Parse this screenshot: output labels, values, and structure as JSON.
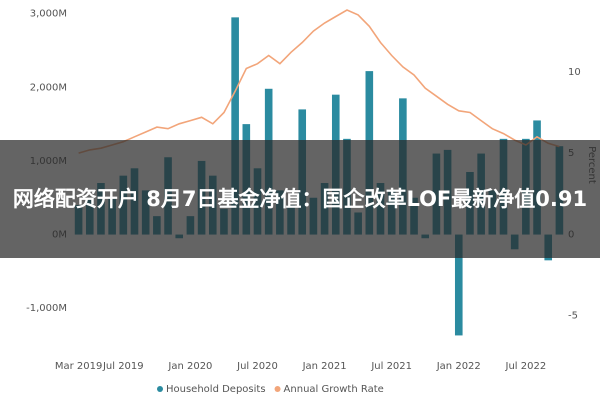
{
  "chart_data": {
    "type": "bar-line",
    "categories": [
      "Mar 2019",
      null,
      null,
      null,
      "Jul 2019",
      null,
      null,
      null,
      null,
      null,
      "Jan 2020",
      null,
      null,
      null,
      null,
      null,
      "Jul 2020",
      null,
      null,
      null,
      null,
      null,
      "Jan 2021",
      null,
      null,
      null,
      null,
      null,
      "Jul 2021",
      null,
      null,
      null,
      null,
      null,
      "Jan 2022",
      null,
      null,
      null,
      null,
      null,
      "Jul 2022",
      null,
      null,
      null
    ],
    "series": [
      {
        "name": "Household Deposits",
        "color": "#2b8ba0",
        "values": [
          400,
          500,
          700,
          500,
          800,
          900,
          600,
          250,
          1050,
          -50,
          250,
          1000,
          800,
          350,
          2950,
          1500,
          900,
          1980,
          600,
          400,
          1700,
          500,
          700,
          1900,
          1300,
          300,
          2220,
          700,
          600,
          1850,
          500,
          -50,
          1100,
          1150,
          -1370,
          850,
          1100,
          600,
          1300,
          -200,
          1300,
          1550,
          -350,
          1200
        ]
      },
      {
        "name": "Annual Growth Rate",
        "color": "#f2a57a",
        "axis": "y2",
        "values": [
          5.0,
          5.2,
          5.3,
          5.5,
          5.7,
          6.0,
          6.3,
          6.6,
          6.5,
          6.8,
          7.0,
          7.2,
          6.8,
          7.5,
          8.8,
          10.2,
          10.5,
          11.0,
          10.5,
          11.2,
          11.8,
          12.5,
          13.0,
          13.4,
          13.8,
          13.5,
          12.8,
          11.8,
          11.0,
          10.3,
          9.8,
          9.0,
          8.5,
          8.0,
          7.6,
          7.5,
          7.0,
          6.5,
          6.2,
          5.8,
          5.5,
          6.0,
          5.6,
          5.4
        ]
      }
    ],
    "ylim": [
      -1500,
      3050
    ],
    "yticks": [
      {
        "value": -1000,
        "label": "-1,000M"
      },
      {
        "value": 0,
        "label": "0M"
      },
      {
        "value": 1000,
        "label": "1,000M"
      },
      {
        "value": 2000,
        "label": "2,000M"
      },
      {
        "value": 3000,
        "label": "3,000M"
      }
    ],
    "y2lim": [
      -6.8,
      13.8
    ],
    "y2ticks": [
      -5,
      0,
      5,
      10
    ],
    "y2label": "Percent",
    "legend": "bottom"
  },
  "banner": {
    "headline": "网络配资开户 8月7日基金净值：国企改革LOF最新净值0.91"
  }
}
